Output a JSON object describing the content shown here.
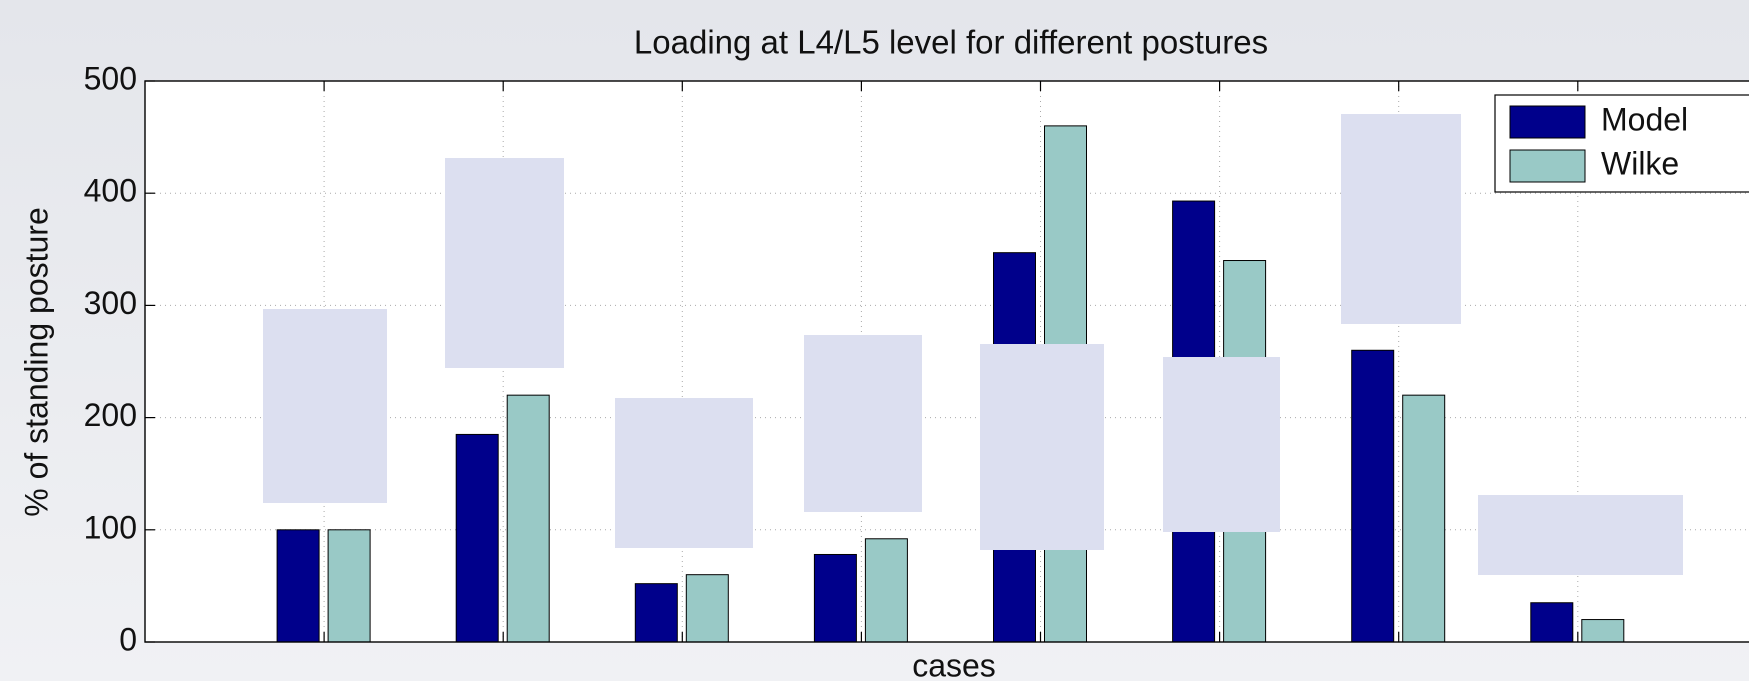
{
  "chart_data": {
    "type": "bar",
    "title": "Loading at L4/L5 level for different postures",
    "x_label": "cases",
    "y_label": "% of standing posture",
    "categories": [
      null,
      null,
      null,
      null,
      null,
      null,
      null,
      null
    ],
    "series": [
      {
        "name": "Model",
        "color": "#00008b",
        "values": [
          100,
          185,
          52,
          78,
          347,
          393,
          260,
          35
        ]
      },
      {
        "name": "Wilke",
        "color": "#99c9c6",
        "values": [
          100,
          220,
          60,
          92,
          460,
          340,
          220,
          20
        ]
      }
    ],
    "ylim": [
      0,
      500
    ],
    "yticks": [
      0,
      100,
      200,
      300,
      400,
      500
    ],
    "grid": true,
    "legend": "upper right"
  }
}
